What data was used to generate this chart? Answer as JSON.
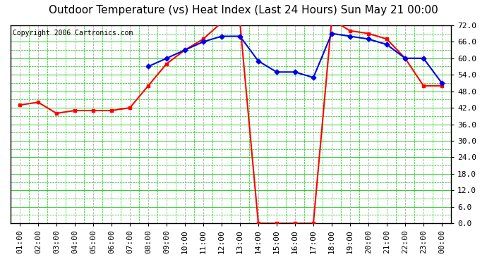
{
  "title": "Outdoor Temperature (vs) Heat Index (Last 24 Hours) Sun May 21 00:00",
  "copyright": "Copyright 2006 Cartronics.com",
  "x_labels": [
    "01:00",
    "02:00",
    "03:00",
    "04:00",
    "05:00",
    "06:00",
    "07:00",
    "08:00",
    "09:00",
    "10:00",
    "11:00",
    "12:00",
    "13:00",
    "14:00",
    "15:00",
    "16:00",
    "17:00",
    "18:00",
    "19:00",
    "20:00",
    "21:00",
    "22:00",
    "23:00",
    "00:00"
  ],
  "temp_red": [
    43,
    44,
    40,
    41,
    41,
    41,
    42,
    50,
    58,
    63,
    67,
    73,
    73,
    0,
    0,
    0,
    0,
    74,
    70,
    69,
    67,
    60,
    50,
    50
  ],
  "heat_blue": [
    null,
    null,
    null,
    null,
    null,
    null,
    null,
    57,
    60,
    63,
    66,
    68,
    68,
    59,
    55,
    55,
    53,
    69,
    68,
    67,
    65,
    60,
    60,
    51
  ],
  "ylim_min": 0,
  "ylim_max": 72,
  "y_ticks": [
    0.0,
    6.0,
    12.0,
    18.0,
    24.0,
    30.0,
    36.0,
    42.0,
    48.0,
    54.0,
    60.0,
    66.0,
    72.0
  ],
  "bg_color": "#ffffff",
  "plot_bg": "#ffffff",
  "grid_color_major": "#00cc00",
  "grid_color_minor": "#00cc00",
  "vline_color": "#aaaaaa",
  "line_red_color": "#FF0000",
  "line_blue_color": "#0000EE",
  "title_color": "#000000",
  "title_fontsize": 11,
  "copyright_fontsize": 7,
  "tick_fontsize": 8,
  "border_color": "#000000"
}
